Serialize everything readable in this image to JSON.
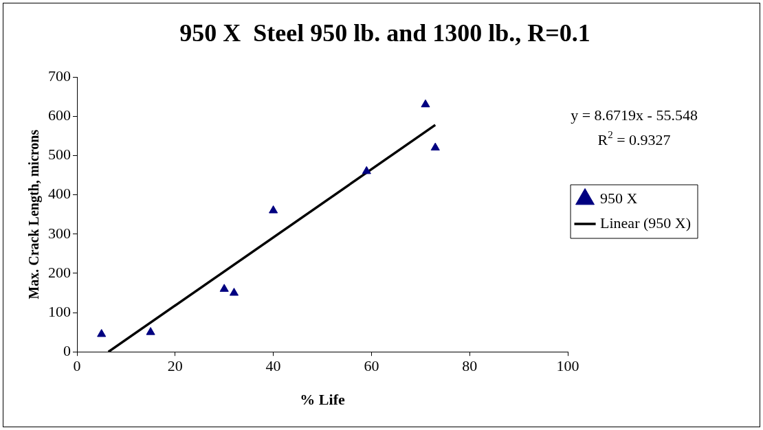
{
  "chart_data": {
    "type": "scatter",
    "title": "950 X  Steel 950 lb. and 1300 lb., R=0.1",
    "xlabel": "% Life",
    "ylabel": "Max. Crack Length, microns",
    "xlim": [
      0,
      100
    ],
    "xticks": [
      0,
      20,
      40,
      60,
      80,
      100
    ],
    "ylim": [
      0,
      700
    ],
    "yticks": [
      0,
      100,
      200,
      300,
      400,
      500,
      600,
      700
    ],
    "grid": false,
    "legend": "right",
    "annotations": [
      "y = 8.6719x - 55.548",
      "R$^{2}$ = 0.9327"
    ],
    "series": [
      {
        "name": "950 X",
        "type": "scatter",
        "marker": "triangle",
        "color": "#000080",
        "x": [
          5,
          15,
          30,
          32,
          40,
          59,
          71,
          73
        ],
        "values": [
          45,
          50,
          160,
          150,
          360,
          460,
          630,
          520
        ]
      },
      {
        "name": "Linear (950 X)",
        "type": "line",
        "color": "#000000",
        "x": [
          6.4,
          73
        ],
        "values": [
          0,
          578
        ]
      }
    ]
  }
}
